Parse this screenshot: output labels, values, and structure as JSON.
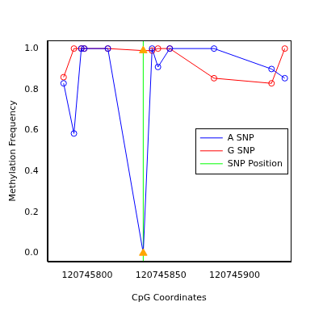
{
  "chart_data": {
    "type": "line",
    "x_label": "CpG Coordinates",
    "y_label": "Methylation Frequency",
    "x": [
      120745784,
      120745791,
      120745796,
      120745798,
      120745814,
      120745838,
      120745844,
      120745848,
      120745856,
      120745886,
      120745925,
      120745934
    ],
    "series": [
      {
        "name": "A SNP",
        "color": "#0000ff",
        "marker": "circle",
        "values": [
          0.83,
          0.585,
          1.0,
          1.0,
          1.0,
          0.0,
          1.0,
          0.91,
          1.0,
          1.0,
          0.9,
          0.855
        ]
      },
      {
        "name": "G SNP",
        "color": "#ff0000",
        "marker": "circle",
        "values": [
          0.86,
          1.0,
          1.0,
          1.0,
          1.0,
          0.99,
          0.99,
          1.0,
          1.0,
          0.855,
          0.83,
          1.0
        ]
      },
      {
        "name": "SNP Position",
        "color": "#00ff00",
        "type": "vline",
        "x": 120745838
      }
    ],
    "xlim": [
      120745773,
      120745938
    ],
    "xticks": [
      120745800,
      120745850,
      120745900
    ],
    "ylim": [
      -0.04,
      1.04
    ],
    "yticks": [
      {
        "value": 0,
        "label": "0.0"
      },
      0.2,
      0.4,
      0.6,
      0.8,
      {
        "value": 1,
        "label": "1.0"
      }
    ],
    "grid": false,
    "legend": "right"
  }
}
